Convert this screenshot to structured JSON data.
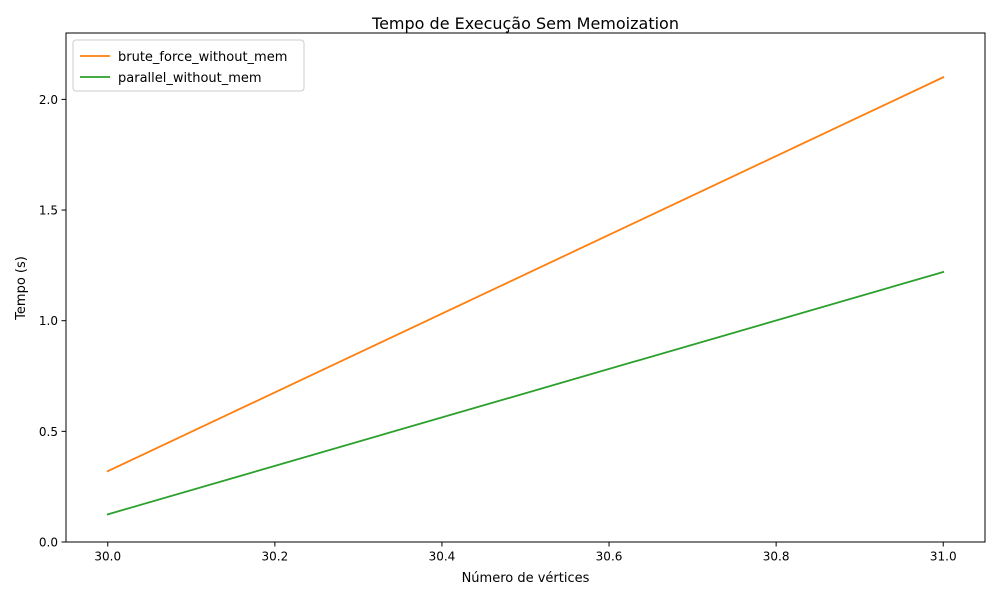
{
  "chart_data": {
    "type": "line",
    "title": "Tempo de Execução Sem Memoization",
    "xlabel": "Número de vértices",
    "ylabel": "Tempo (s)",
    "x": [
      30,
      31
    ],
    "xlim": [
      29.95,
      31.05
    ],
    "ylim": [
      0,
      2.3
    ],
    "xticks": [
      30.0,
      30.2,
      30.4,
      30.6,
      30.8,
      31.0
    ],
    "xtick_labels": [
      "30.0",
      "30.2",
      "30.4",
      "30.6",
      "30.8",
      "31.0"
    ],
    "yticks": [
      0.0,
      0.5,
      1.0,
      1.5,
      2.0
    ],
    "ytick_labels": [
      "0.0",
      "0.5",
      "1.0",
      "1.5",
      "2.0"
    ],
    "grid": false,
    "legend_position": "top-left",
    "series": [
      {
        "name": "brute_force_without_mem",
        "color": "#ff7f0e",
        "x": [
          30,
          31
        ],
        "values": [
          0.32,
          2.1
        ]
      },
      {
        "name": "parallel_without_mem",
        "color": "#2ca02c",
        "x": [
          30,
          31
        ],
        "values": [
          0.125,
          1.22
        ]
      }
    ]
  }
}
